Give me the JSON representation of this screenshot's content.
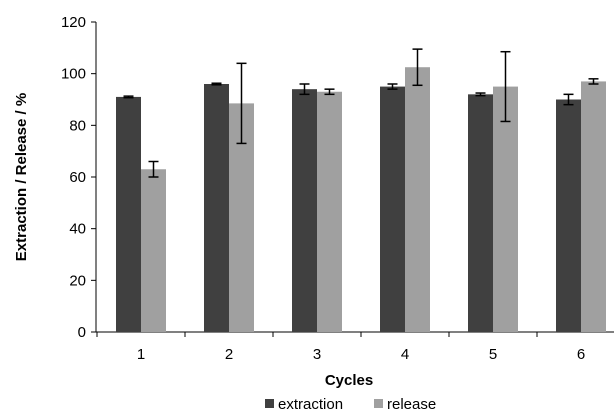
{
  "chart_data": {
    "type": "bar",
    "title": "",
    "xlabel": "Cycles",
    "ylabel": "Extraction / Release / %",
    "categories": [
      "1",
      "2",
      "3",
      "4",
      "5",
      "6"
    ],
    "ylim": [
      0,
      120
    ],
    "yticks": [
      "0",
      "20",
      "40",
      "60",
      "80",
      "100",
      "120"
    ],
    "grid": false,
    "legend_position": "bottom",
    "series": [
      {
        "name": "extraction",
        "color": "#404040",
        "values": [
          91,
          96,
          94,
          95,
          92,
          90
        ],
        "errors": [
          0.3,
          0.3,
          2.0,
          1.0,
          0.5,
          2.0
        ]
      },
      {
        "name": "release",
        "color": "#a0a0a0",
        "values": [
          63,
          88.5,
          93,
          102.5,
          95,
          97
        ],
        "errors": [
          3.0,
          15.5,
          1.0,
          7.0,
          13.5,
          1.0
        ]
      }
    ]
  }
}
